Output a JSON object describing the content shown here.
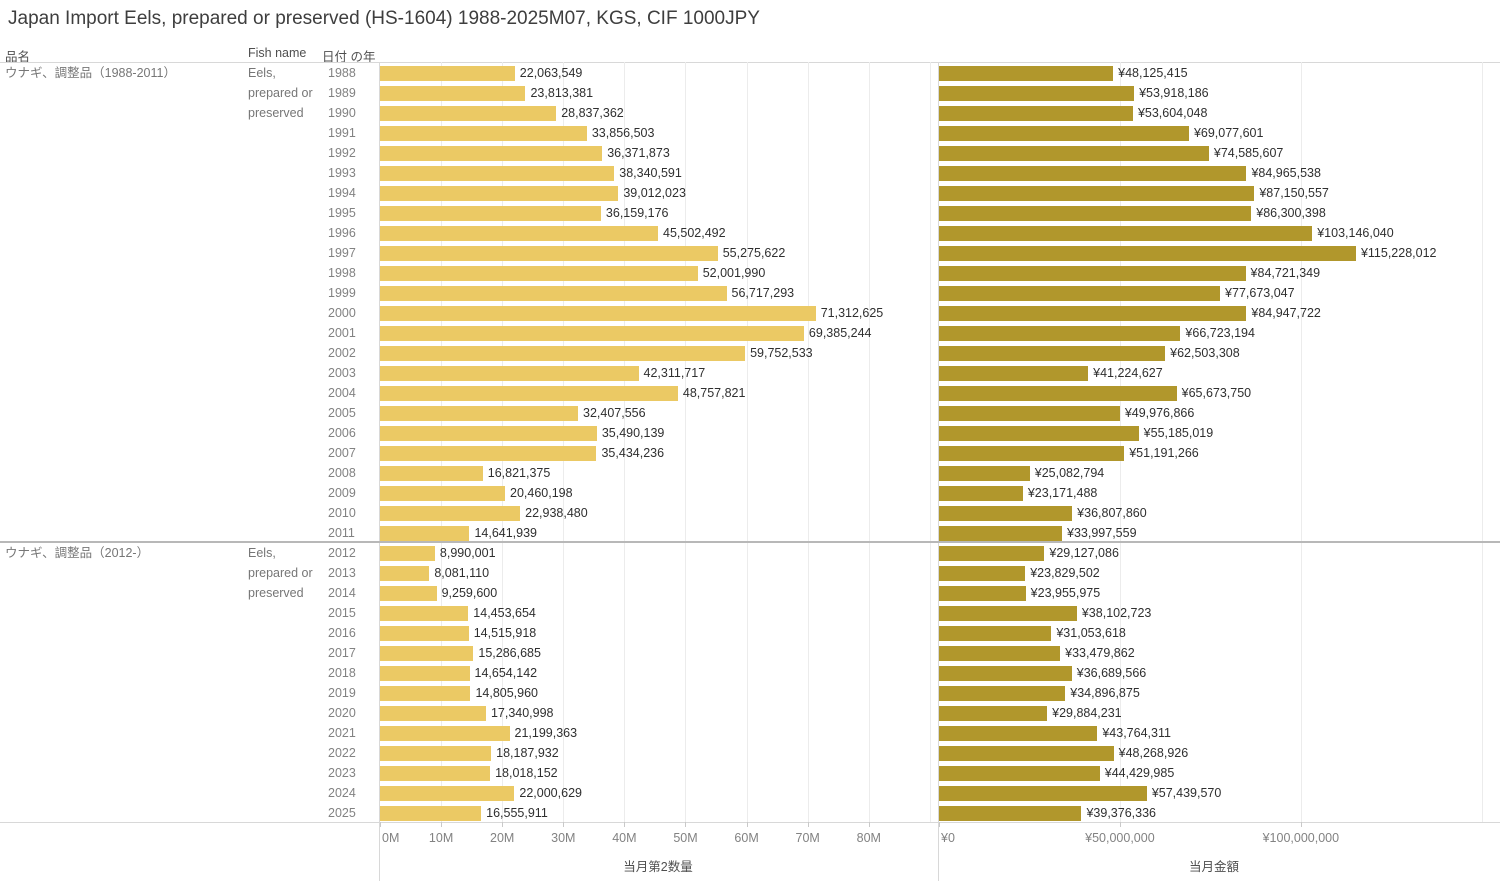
{
  "title": "Japan Import Eels, prepared or preserved (HS-1604) 1988-2025M07, KGS, CIF 1000JPY",
  "column_headers": {
    "product": "品名",
    "fish_name": "Fish name",
    "year": "日付 の年"
  },
  "row_groups": [
    {
      "product": "ウナギ、調整品（1988-2011）",
      "fish_name_lines": [
        "Eels,",
        "prepared or",
        "preserved"
      ],
      "year_start": 1988,
      "year_end": 2011
    },
    {
      "product": "ウナギ、調整品（2012-）",
      "fish_name_lines": [
        "Eels,",
        "prepared or",
        "preserved"
      ],
      "year_start": 2012,
      "year_end": 2025
    }
  ],
  "chart_data": [
    {
      "type": "bar",
      "orientation": "horizontal",
      "xlabel": "当月第2数量",
      "bar_color": "#ebc964",
      "value_label_prefix": "",
      "xlim": [
        0,
        91000000
      ],
      "ticks": [
        {
          "label": "0M",
          "value": 0
        },
        {
          "label": "10M",
          "value": 10000000
        },
        {
          "label": "20M",
          "value": 20000000
        },
        {
          "label": "30M",
          "value": 30000000
        },
        {
          "label": "40M",
          "value": 40000000
        },
        {
          "label": "50M",
          "value": 50000000
        },
        {
          "label": "60M",
          "value": 60000000
        },
        {
          "label": "70M",
          "value": 70000000
        },
        {
          "label": "80M",
          "value": 80000000
        }
      ],
      "unlabeled_gridlines": [
        90000000
      ],
      "categories": [
        1988,
        1989,
        1990,
        1991,
        1992,
        1993,
        1994,
        1995,
        1996,
        1997,
        1998,
        1999,
        2000,
        2001,
        2002,
        2003,
        2004,
        2005,
        2006,
        2007,
        2008,
        2009,
        2010,
        2011,
        2012,
        2013,
        2014,
        2015,
        2016,
        2017,
        2018,
        2019,
        2020,
        2021,
        2022,
        2023,
        2024,
        2025
      ],
      "values": [
        22063549,
        23813381,
        28837362,
        33856503,
        36371873,
        38340591,
        39012023,
        36159176,
        45502492,
        55275622,
        52001990,
        56717293,
        71312625,
        69385244,
        59752533,
        42311717,
        48757821,
        32407556,
        35490139,
        35434236,
        16821375,
        20460198,
        22938480,
        14641939,
        8990001,
        8081110,
        9259600,
        14453654,
        14515918,
        15286685,
        14654142,
        14805960,
        17340998,
        21199363,
        18187932,
        18018152,
        22000629,
        16555911
      ]
    },
    {
      "type": "bar",
      "orientation": "horizontal",
      "xlabel": "当月金額",
      "bar_color": "#b1972c",
      "value_label_prefix": "¥",
      "xlim": [
        0,
        152000000
      ],
      "ticks": [
        {
          "label": "¥0",
          "value": 0
        },
        {
          "label": "¥50,000,000",
          "value": 50000000
        },
        {
          "label": "¥100,000,000",
          "value": 100000000
        }
      ],
      "unlabeled_gridlines": [
        150000000
      ],
      "categories": [
        1988,
        1989,
        1990,
        1991,
        1992,
        1993,
        1994,
        1995,
        1996,
        1997,
        1998,
        1999,
        2000,
        2001,
        2002,
        2003,
        2004,
        2005,
        2006,
        2007,
        2008,
        2009,
        2010,
        2011,
        2012,
        2013,
        2014,
        2015,
        2016,
        2017,
        2018,
        2019,
        2020,
        2021,
        2022,
        2023,
        2024,
        2025
      ],
      "values": [
        48125415,
        53918186,
        53604048,
        69077601,
        74585607,
        84965538,
        87150557,
        86300398,
        103146040,
        115228012,
        84721349,
        77673047,
        84947722,
        66723194,
        62503308,
        41224627,
        65673750,
        49976866,
        55185019,
        51191266,
        25082794,
        23171488,
        36807860,
        33997559,
        29127086,
        23829502,
        23955975,
        38102723,
        31053618,
        33479862,
        36689566,
        34896875,
        29884231,
        43764311,
        48268926,
        44429985,
        57439570,
        39376336
      ]
    }
  ]
}
